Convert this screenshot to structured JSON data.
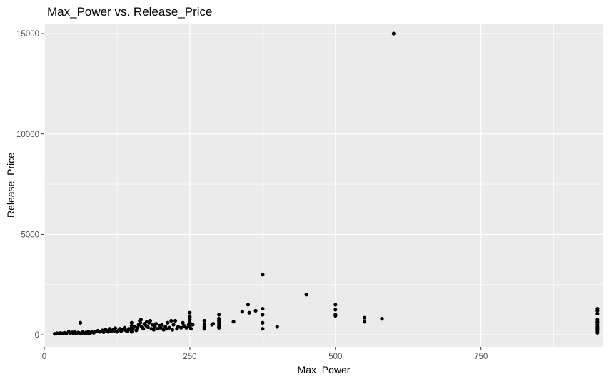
{
  "chart_data": {
    "type": "scatter",
    "title": "Max_Power vs. Release_Price",
    "xlabel": "Max_Power",
    "ylabel": "Release_Price",
    "xlim": [
      0,
      960
    ],
    "ylim": [
      -600,
      15500
    ],
    "x_ticks": [
      {
        "value": 0,
        "label": "0"
      },
      {
        "value": 250,
        "label": "250"
      },
      {
        "value": 500,
        "label": "500"
      },
      {
        "value": 750,
        "label": "750"
      }
    ],
    "y_ticks": [
      {
        "value": 0,
        "label": "0"
      },
      {
        "value": 5000,
        "label": "5000"
      },
      {
        "value": 10000,
        "label": "10000"
      },
      {
        "value": 15000,
        "label": "15000"
      }
    ],
    "grid": true,
    "colors": {
      "panel": "#ebebeb",
      "grid": "#ffffff",
      "point": "#000000"
    },
    "points": [
      [
        18,
        50
      ],
      [
        22,
        80
      ],
      [
        25,
        60
      ],
      [
        28,
        90
      ],
      [
        32,
        70
      ],
      [
        35,
        100
      ],
      [
        38,
        60
      ],
      [
        42,
        150
      ],
      [
        45,
        90
      ],
      [
        48,
        120
      ],
      [
        50,
        80
      ],
      [
        52,
        140
      ],
      [
        55,
        70
      ],
      [
        58,
        110
      ],
      [
        60,
        90
      ],
      [
        62,
        600
      ],
      [
        64,
        60
      ],
      [
        66,
        130
      ],
      [
        68,
        100
      ],
      [
        70,
        80
      ],
      [
        72,
        120
      ],
      [
        74,
        90
      ],
      [
        76,
        150
      ],
      [
        78,
        60
      ],
      [
        80,
        110
      ],
      [
        82,
        140
      ],
      [
        85,
        100
      ],
      [
        88,
        160
      ],
      [
        92,
        200
      ],
      [
        95,
        150
      ],
      [
        98,
        180
      ],
      [
        100,
        220
      ],
      [
        102,
        130
      ],
      [
        105,
        260
      ],
      [
        108,
        200
      ],
      [
        110,
        150
      ],
      [
        112,
        300
      ],
      [
        115,
        180
      ],
      [
        118,
        240
      ],
      [
        120,
        200
      ],
      [
        122,
        330
      ],
      [
        125,
        150
      ],
      [
        128,
        230
      ],
      [
        130,
        300
      ],
      [
        132,
        190
      ],
      [
        135,
        260
      ],
      [
        138,
        350
      ],
      [
        140,
        220
      ],
      [
        142,
        180
      ],
      [
        145,
        300
      ],
      [
        148,
        250
      ],
      [
        150,
        150
      ],
      [
        150,
        250
      ],
      [
        150,
        350
      ],
      [
        150,
        450
      ],
      [
        150,
        600
      ],
      [
        152,
        300
      ],
      [
        155,
        400
      ],
      [
        158,
        220
      ],
      [
        160,
        350
      ],
      [
        162,
        500
      ],
      [
        164,
        700
      ],
      [
        165,
        600
      ],
      [
        166,
        750
      ],
      [
        167,
        400
      ],
      [
        170,
        300
      ],
      [
        172,
        550
      ],
      [
        175,
        450
      ],
      [
        176,
        650
      ],
      [
        178,
        380
      ],
      [
        180,
        600
      ],
      [
        182,
        700
      ],
      [
        184,
        300
      ],
      [
        186,
        500
      ],
      [
        188,
        250
      ],
      [
        190,
        400
      ],
      [
        192,
        550
      ],
      [
        195,
        300
      ],
      [
        198,
        450
      ],
      [
        200,
        350
      ],
      [
        202,
        500
      ],
      [
        205,
        250
      ],
      [
        208,
        400
      ],
      [
        210,
        300
      ],
      [
        212,
        600
      ],
      [
        215,
        350
      ],
      [
        218,
        700
      ],
      [
        220,
        250
      ],
      [
        222,
        500
      ],
      [
        225,
        700
      ],
      [
        228,
        300
      ],
      [
        230,
        400
      ],
      [
        235,
        350
      ],
      [
        238,
        600
      ],
      [
        240,
        450
      ],
      [
        244,
        350
      ],
      [
        248,
        500
      ],
      [
        250,
        400
      ],
      [
        250,
        600
      ],
      [
        250,
        750
      ],
      [
        250,
        900
      ],
      [
        250,
        1100
      ],
      [
        252,
        300
      ],
      [
        255,
        500
      ],
      [
        275,
        300
      ],
      [
        275,
        400
      ],
      [
        275,
        500
      ],
      [
        275,
        700
      ],
      [
        288,
        500
      ],
      [
        290,
        550
      ],
      [
        300,
        400
      ],
      [
        300,
        500
      ],
      [
        300,
        600
      ],
      [
        300,
        700
      ],
      [
        300,
        800
      ],
      [
        300,
        1000
      ],
      [
        300,
        350
      ],
      [
        325,
        650
      ],
      [
        340,
        1150
      ],
      [
        350,
        1500
      ],
      [
        352,
        1100
      ],
      [
        363,
        1200
      ],
      [
        375,
        3000
      ],
      [
        375,
        1300
      ],
      [
        375,
        1000
      ],
      [
        375,
        600
      ],
      [
        375,
        300
      ],
      [
        400,
        400
      ],
      [
        450,
        2000
      ],
      [
        500,
        1500
      ],
      [
        500,
        1250
      ],
      [
        500,
        1000
      ],
      [
        500,
        950
      ],
      [
        550,
        850
      ],
      [
        550,
        650
      ],
      [
        580,
        800
      ],
      [
        600,
        15000
      ],
      [
        950,
        100
      ],
      [
        950,
        200
      ],
      [
        950,
        300
      ],
      [
        950,
        400
      ],
      [
        950,
        500
      ],
      [
        950,
        600
      ],
      [
        950,
        650
      ],
      [
        950,
        750
      ],
      [
        950,
        1050
      ],
      [
        950,
        1200
      ],
      [
        950,
        1300
      ]
    ]
  }
}
